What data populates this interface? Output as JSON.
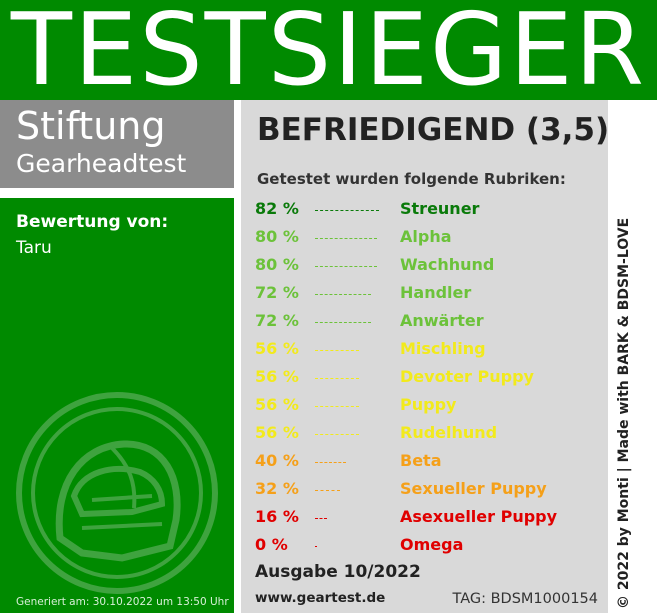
{
  "banner": {
    "title": "TESTSIEGER"
  },
  "brand": {
    "line1": "Stiftung",
    "line2": "Gearheadtest"
  },
  "rating": {
    "label": "Bewertung von:",
    "name": "Taru"
  },
  "generated": "Generiert am: 30.10.2022 um 13:50 Uhr",
  "verdict": "BEFRIEDIGEND (3,5)",
  "intro": "Getestet wurden folgende Rubriken:",
  "categories": [
    {
      "percent": "82 %",
      "name": "Streuner",
      "value": 82,
      "color": "#0a7a0a"
    },
    {
      "percent": "80 %",
      "name": "Alpha",
      "value": 80,
      "color": "#6cc23a"
    },
    {
      "percent": "80 %",
      "name": "Wachhund",
      "value": 80,
      "color": "#6cc23a"
    },
    {
      "percent": "72 %",
      "name": "Handler",
      "value": 72,
      "color": "#6cc23a"
    },
    {
      "percent": "72 %",
      "name": "Anwärter",
      "value": 72,
      "color": "#6cc23a"
    },
    {
      "percent": "56 %",
      "name": "Mischling",
      "value": 56,
      "color": "#f2ea1c"
    },
    {
      "percent": "56 %",
      "name": "Devoter Puppy",
      "value": 56,
      "color": "#f2ea1c"
    },
    {
      "percent": "56 %",
      "name": "Puppy",
      "value": 56,
      "color": "#f2ea1c"
    },
    {
      "percent": "56 %",
      "name": "Rudelhund",
      "value": 56,
      "color": "#f2ea1c"
    },
    {
      "percent": "40 %",
      "name": "Beta",
      "value": 40,
      "color": "#f5a019"
    },
    {
      "percent": "32 %",
      "name": "Sexueller Puppy",
      "value": 32,
      "color": "#f5a019"
    },
    {
      "percent": "16 %",
      "name": "Asexueller Puppy",
      "value": 16,
      "color": "#e00000"
    },
    {
      "percent": "0 %",
      "name": "Omega",
      "value": 0,
      "color": "#e00000"
    }
  ],
  "issue": "Ausgabe 10/2022",
  "website": "www.geartest.de",
  "tag": "TAG: BDSM1000154",
  "credit": "© 2022 by Monti | Made with BARK & BDSM-LOVE",
  "icons": {
    "emblem": "helmet-emblem-icon"
  },
  "colors": {
    "green": "#008a00",
    "grey": "#8c8c8c",
    "panel": "#d9d9d9"
  }
}
